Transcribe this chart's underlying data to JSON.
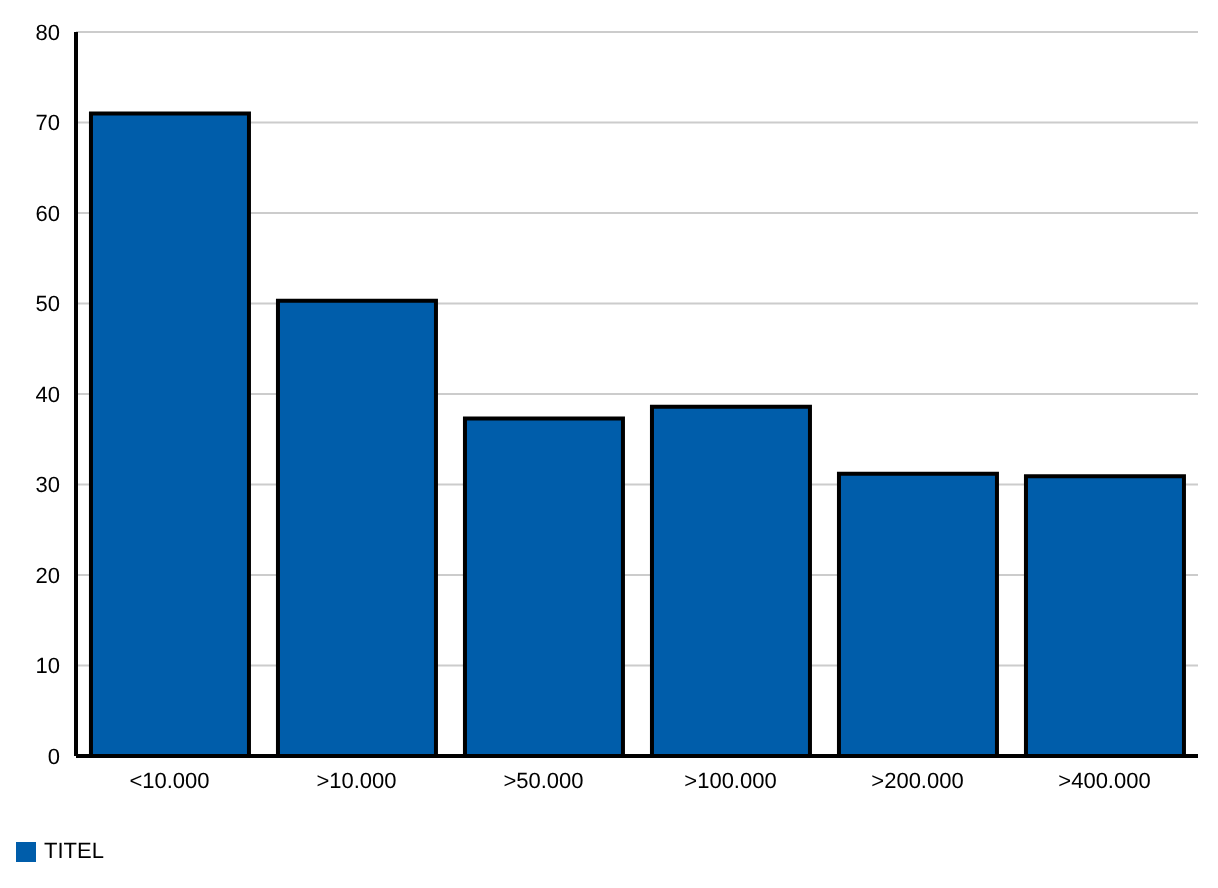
{
  "chart_data": {
    "type": "bar",
    "categories": [
      "<10.000",
      ">10.000",
      ">50.000",
      ">100.000",
      ">200.000",
      ">400.000"
    ],
    "series": [
      {
        "name": "TITEL",
        "color": "#005daa",
        "values": [
          71,
          50.3,
          37.3,
          38.6,
          31.2,
          30.9
        ]
      }
    ],
    "ylim": [
      0,
      80
    ],
    "yticks": [
      0,
      10,
      20,
      30,
      40,
      50,
      60,
      70,
      80
    ],
    "grid": "y",
    "legend": "bottom left"
  }
}
